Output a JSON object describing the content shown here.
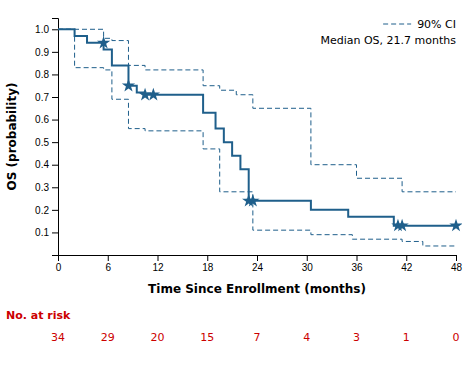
{
  "chart_data": {
    "type": "line",
    "xlabel": "Time Since Enrollment (months)",
    "ylabel": "OS (probability)",
    "xlim": [
      0,
      48
    ],
    "ylim": [
      0,
      1.05
    ],
    "xticks": [
      0,
      6,
      12,
      18,
      24,
      30,
      36,
      42,
      48
    ],
    "yticks": [
      0.1,
      0.2,
      0.3,
      0.4,
      0.5,
      0.6,
      0.7,
      0.8,
      0.9,
      {
        "value": 1.0,
        "label": "1.0"
      }
    ],
    "legend": "upper right",
    "annotations": [
      "Median OS, 21.7 months"
    ],
    "series": [
      {
        "name": "90% CI",
        "type": "line",
        "line_style": "dashed",
        "color": "#1f5f8b",
        "x": [
          0.0,
          2.0,
          2.0,
          3.5,
          3.5,
          5.5,
          5.5,
          6.5,
          6.5,
          8.5,
          8.5,
          10.5,
          10.5,
          17.5,
          17.5,
          19.5,
          19.5,
          21.5,
          21.5,
          23.5,
          23.5,
          30.5,
          30.5,
          36.0,
          36.0,
          41.5,
          41.5,
          48.0
        ],
        "values": [
          1.0,
          1.0,
          1.0,
          1.0,
          1.0,
          1.0,
          0.96,
          0.96,
          0.95,
          0.95,
          0.84,
          0.84,
          0.82,
          0.82,
          0.75,
          0.75,
          0.73,
          0.73,
          0.71,
          0.71,
          0.65,
          0.65,
          0.4,
          0.4,
          0.34,
          0.34,
          0.28,
          0.28
        ]
      },
      {
        "type": "line",
        "line_style": "dashed",
        "color": "#1f5f8b",
        "x": [
          0.0,
          2.0,
          2.0,
          5.5,
          5.5,
          6.5,
          6.5,
          8.5,
          8.5,
          10.5,
          10.5,
          17.5,
          17.5,
          19.5,
          19.5,
          23.5,
          23.5,
          30.5,
          30.5,
          35.5,
          35.5,
          41.5,
          41.5,
          44.0,
          44.0,
          48.0
        ],
        "values": [
          1.0,
          1.0,
          0.83,
          0.83,
          0.82,
          0.82,
          0.69,
          0.69,
          0.56,
          0.56,
          0.55,
          0.55,
          0.47,
          0.47,
          0.28,
          0.28,
          0.11,
          0.11,
          0.09,
          0.09,
          0.07,
          0.07,
          0.06,
          0.06,
          0.04,
          0.04
        ]
      },
      {
        "type": "line",
        "line_style": "solid",
        "color": "#1f5f8b",
        "x": [
          0.0,
          2.0,
          2.0,
          3.5,
          3.5,
          5.5,
          5.5,
          6.5,
          6.5,
          8.5,
          8.5,
          9.5,
          9.5,
          10.5,
          10.5,
          17.5,
          17.5,
          19.0,
          19.0,
          20.0,
          20.0,
          21.0,
          21.0,
          22.0,
          22.0,
          23.0,
          23.0,
          30.5,
          30.5,
          35.0,
          35.0,
          40.5,
          40.5,
          48.0
        ],
        "values": [
          1.0,
          1.0,
          0.97,
          0.97,
          0.94,
          0.94,
          0.91,
          0.91,
          0.84,
          0.84,
          0.75,
          0.75,
          0.72,
          0.72,
          0.71,
          0.71,
          0.63,
          0.63,
          0.56,
          0.56,
          0.5,
          0.5,
          0.44,
          0.44,
          0.38,
          0.38,
          0.24,
          0.24,
          0.2,
          0.2,
          0.17,
          0.17,
          0.13,
          0.13
        ]
      },
      {
        "type": "scatter",
        "marker": "star",
        "color": "#1f5f8b",
        "x": [
          5.5,
          8.5,
          10.5,
          11.5,
          23.0,
          23.5,
          41.0,
          41.5,
          48.0
        ],
        "values": [
          0.94,
          0.75,
          0.71,
          0.71,
          0.24,
          0.24,
          0.13,
          0.13,
          0.13
        ]
      }
    ],
    "at_risk": {
      "label": "No. at risk",
      "color": "#cc0000",
      "x": [
        0,
        6,
        12,
        18,
        24,
        30,
        36,
        42,
        48
      ],
      "values": [
        34,
        29,
        20,
        15,
        7,
        4,
        3,
        1,
        0
      ]
    }
  }
}
